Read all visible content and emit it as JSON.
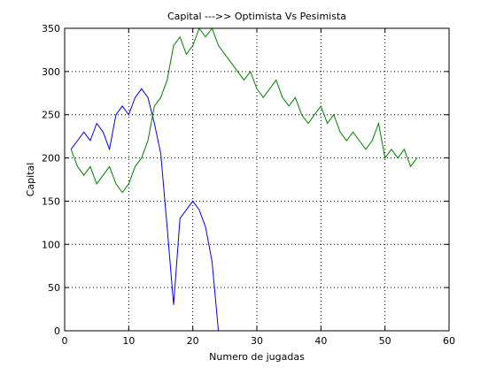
{
  "chart_data": {
    "type": "line",
    "title": "Capital --->>  Optimista Vs Pesimista",
    "xlabel": "Numero de jugadas",
    "ylabel": "Capital",
    "xlim": [
      0,
      60
    ],
    "ylim": [
      0,
      350
    ],
    "xticks": [
      0,
      10,
      20,
      30,
      40,
      50,
      60
    ],
    "yticks": [
      0,
      50,
      100,
      150,
      200,
      250,
      300,
      350
    ],
    "grid": true,
    "series": [
      {
        "color": "#0000ff",
        "x": [
          1,
          2,
          3,
          4,
          5,
          6,
          7,
          8,
          9,
          10,
          11,
          12,
          13,
          14,
          15,
          16,
          17,
          18,
          19,
          20,
          21,
          22,
          23,
          24
        ],
        "y": [
          210,
          220,
          230,
          220,
          240,
          230,
          210,
          250,
          260,
          250,
          270,
          280,
          270,
          240,
          205,
          120,
          30,
          130,
          140,
          150,
          140,
          120,
          80,
          0
        ]
      },
      {
        "color": "#008000",
        "x": [
          1,
          2,
          3,
          4,
          5,
          6,
          7,
          8,
          9,
          10,
          11,
          12,
          13,
          14,
          15,
          16,
          17,
          18,
          19,
          20,
          21,
          22,
          23,
          24,
          25,
          26,
          27,
          28,
          29,
          30,
          31,
          32,
          33,
          34,
          35,
          36,
          37,
          38,
          39,
          40,
          41,
          42,
          43,
          44,
          45,
          46,
          47,
          48,
          49,
          50,
          51,
          52,
          53,
          54,
          55
        ],
        "y": [
          210,
          190,
          180,
          190,
          170,
          180,
          190,
          170,
          160,
          170,
          190,
          200,
          220,
          260,
          270,
          290,
          330,
          340,
          320,
          330,
          350,
          340,
          350,
          330,
          320,
          310,
          300,
          290,
          300,
          280,
          270,
          280,
          290,
          270,
          260,
          270,
          250,
          240,
          250,
          260,
          240,
          250,
          230,
          220,
          230,
          220,
          210,
          220,
          240,
          200,
          210,
          200,
          210,
          190,
          200
        ]
      }
    ]
  }
}
